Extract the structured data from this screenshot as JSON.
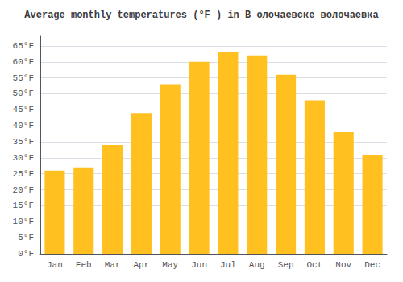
{
  "chart_data": {
    "type": "bar",
    "title": "Average monthly temperatures (°F ) in В олочаевске волочаевка",
    "categories": [
      "Jan",
      "Feb",
      "Mar",
      "Apr",
      "May",
      "Jun",
      "Jul",
      "Aug",
      "Sep",
      "Oct",
      "Nov",
      "Dec"
    ],
    "values": [
      26,
      27,
      34,
      44,
      53,
      60,
      63,
      62,
      56,
      48,
      38,
      31
    ],
    "color": "#FFC020",
    "ylim": [
      0,
      68
    ],
    "yticks": [
      {
        "value": 0,
        "label": "0°F"
      },
      {
        "value": 5,
        "label": "5°F"
      },
      {
        "value": 10,
        "label": "10°F"
      },
      {
        "value": 15,
        "label": "15°F"
      },
      {
        "value": 20,
        "label": "20°F"
      },
      {
        "value": 25,
        "label": "25°F"
      },
      {
        "value": 30,
        "label": "30°F"
      },
      {
        "value": 35,
        "label": "35°F"
      },
      {
        "value": 40,
        "label": "40°F"
      },
      {
        "value": 45,
        "label": "45°F"
      },
      {
        "value": 50,
        "label": "50°F"
      },
      {
        "value": 55,
        "label": "55°F"
      },
      {
        "value": 60,
        "label": "60°F"
      },
      {
        "value": 65,
        "label": "65°F"
      }
    ],
    "grid": true
  }
}
